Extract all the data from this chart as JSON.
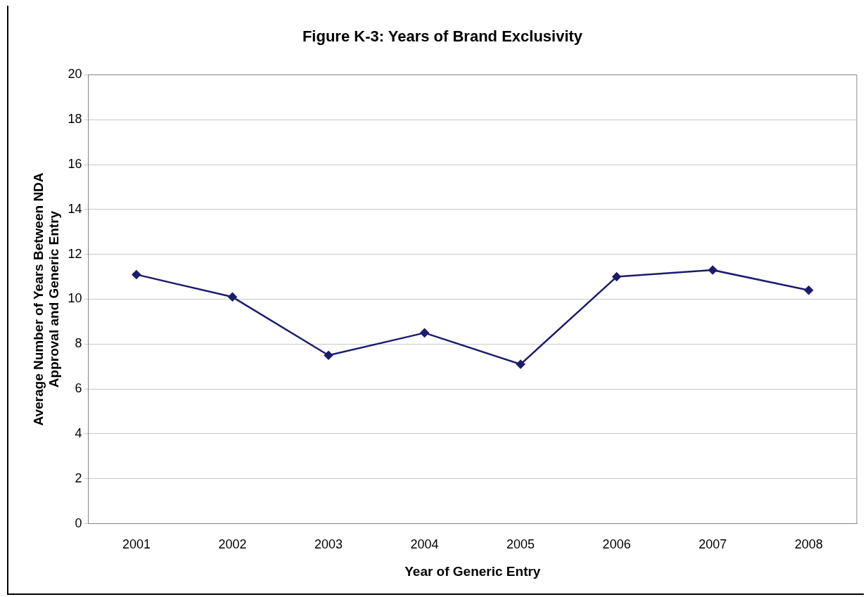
{
  "chart_data": {
    "type": "line",
    "title": "Figure K-3: Years of Brand Exclusivity",
    "xlabel": "Year of Generic Entry",
    "ylabel": "Average Number of Years Between NDA Approval and Generic Entry",
    "categories": [
      "2001",
      "2002",
      "2003",
      "2004",
      "2005",
      "2006",
      "2007",
      "2008"
    ],
    "series": [
      {
        "color": "#1c1c6e",
        "values": [
          11.1,
          10.1,
          7.5,
          8.5,
          7.1,
          11.0,
          11.3,
          10.4
        ]
      }
    ],
    "ylim": [
      0,
      20
    ],
    "yticks": [
      0,
      2,
      4,
      6,
      8,
      10,
      12,
      14,
      16,
      18,
      20
    ],
    "grid": "y",
    "legend": false,
    "marker": "diamond",
    "line_style": "solid"
  }
}
